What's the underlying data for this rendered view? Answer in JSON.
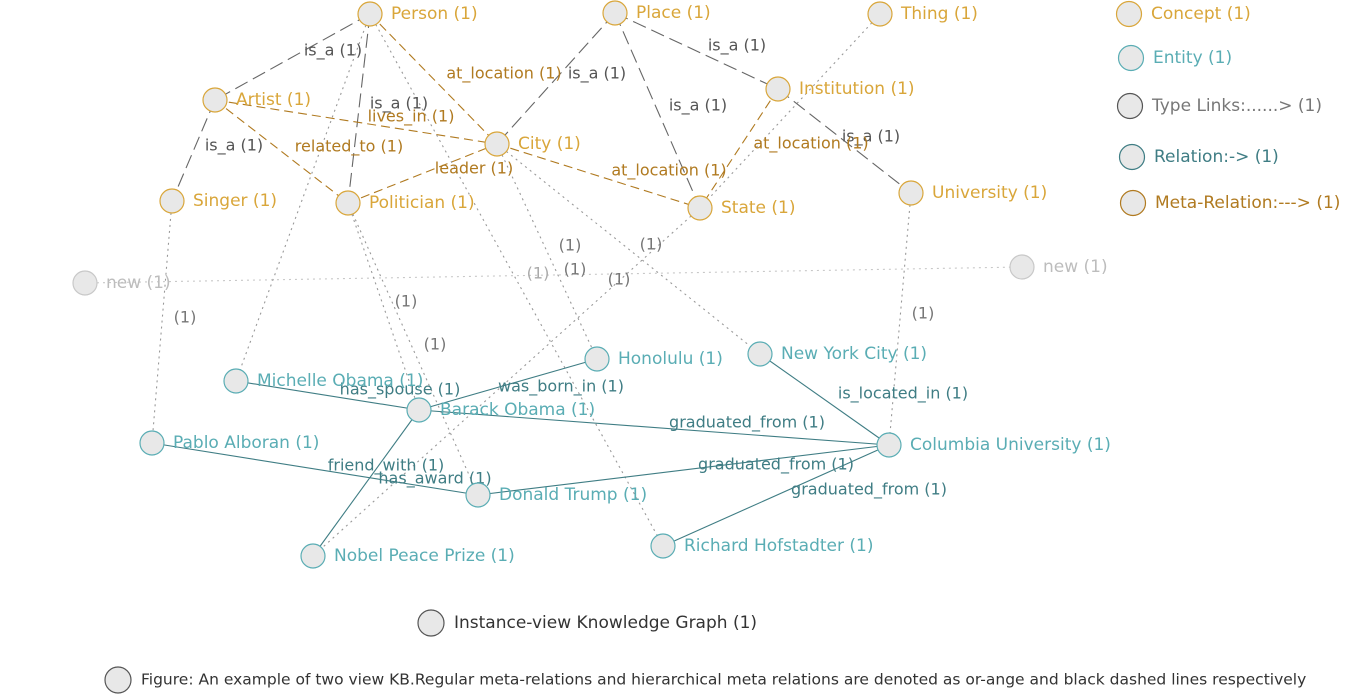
{
  "colors": {
    "concept": "#D9A63A",
    "entity": "#5AADB4",
    "relation": "#3F7D84",
    "meta_relation": "#B07A20",
    "type_link": "#999999",
    "hierarchy": "#666666",
    "new": "#c8c8c8",
    "neutral_circle": "#555555",
    "neutral_text": "#333333"
  },
  "nodes": [
    {
      "id": "person",
      "label": "Person (1)",
      "kind": "concept"
    },
    {
      "id": "place",
      "label": "Place (1)",
      "kind": "concept"
    },
    {
      "id": "thing",
      "label": "Thing (1)",
      "kind": "concept"
    },
    {
      "id": "artist",
      "label": "Artist (1)",
      "kind": "concept"
    },
    {
      "id": "institution",
      "label": "Institution (1)",
      "kind": "concept"
    },
    {
      "id": "city",
      "label": "City (1)",
      "kind": "concept"
    },
    {
      "id": "singer",
      "label": "Singer (1)",
      "kind": "concept"
    },
    {
      "id": "politician",
      "label": "Politician (1)",
      "kind": "concept"
    },
    {
      "id": "state",
      "label": "State (1)",
      "kind": "concept"
    },
    {
      "id": "university",
      "label": "University (1)",
      "kind": "concept"
    },
    {
      "id": "new_left",
      "label": "new (1)",
      "kind": "new"
    },
    {
      "id": "new_right",
      "label": "new (1)",
      "kind": "new"
    },
    {
      "id": "honolulu",
      "label": "Honolulu (1)",
      "kind": "entity"
    },
    {
      "id": "nyc",
      "label": "New York City (1)",
      "kind": "entity"
    },
    {
      "id": "michelle",
      "label": "Michelle Obama (1)",
      "kind": "entity"
    },
    {
      "id": "barack",
      "label": "Barack Obama (1)",
      "kind": "entity"
    },
    {
      "id": "pablo",
      "label": "Pablo Alboran (1)",
      "kind": "entity"
    },
    {
      "id": "columbia",
      "label": "Columbia University (1)",
      "kind": "entity"
    },
    {
      "id": "trump",
      "label": "Donald Trump (1)",
      "kind": "entity"
    },
    {
      "id": "nobel",
      "label": "Nobel Peace Prize (1)",
      "kind": "entity"
    },
    {
      "id": "hofstadter",
      "label": "Richard Hofstadter (1)",
      "kind": "entity"
    }
  ],
  "edges": [
    {
      "id": "e1",
      "source": "person",
      "target": "artist",
      "kind": "hierarchy",
      "label": "is_a (1)"
    },
    {
      "id": "e2",
      "source": "person",
      "target": "politician",
      "kind": "hierarchy",
      "label": "is_a (1)"
    },
    {
      "id": "e3",
      "source": "artist",
      "target": "singer",
      "kind": "hierarchy",
      "label": "is_a (1)"
    },
    {
      "id": "e4",
      "source": "place",
      "target": "city",
      "kind": "hierarchy",
      "label": "is_a (1)"
    },
    {
      "id": "e5",
      "source": "place",
      "target": "state",
      "kind": "hierarchy",
      "label": "is_a (1)"
    },
    {
      "id": "e6",
      "source": "place",
      "target": "institution",
      "kind": "hierarchy",
      "label": "is_a (1)"
    },
    {
      "id": "e7",
      "source": "institution",
      "target": "university",
      "kind": "hierarchy",
      "label": "is_a (1)"
    },
    {
      "id": "e8",
      "source": "person",
      "target": "city",
      "kind": "meta",
      "label": "at_location (1)"
    },
    {
      "id": "e9",
      "source": "artist",
      "target": "city",
      "kind": "meta",
      "label": "lives_in (1)"
    },
    {
      "id": "e10",
      "source": "artist",
      "target": "politician",
      "kind": "meta",
      "label": "related_to (1)"
    },
    {
      "id": "e11",
      "source": "politician",
      "target": "city",
      "kind": "meta",
      "label": "leader (1)"
    },
    {
      "id": "e12",
      "source": "city",
      "target": "state",
      "kind": "meta",
      "label": "at_location (1)"
    },
    {
      "id": "e13",
      "source": "institution",
      "target": "state",
      "kind": "meta",
      "label": "at_location (1)"
    },
    {
      "id": "e14",
      "source": "thing",
      "target": "state",
      "kind": "type",
      "label": ""
    },
    {
      "id": "e15",
      "source": "new_left",
      "target": "new_right",
      "kind": "new",
      "label": "(1)"
    },
    {
      "id": "e16",
      "source": "person",
      "target": "michelle",
      "kind": "type",
      "label": ""
    },
    {
      "id": "e17",
      "source": "person",
      "target": "hofstadter",
      "kind": "type",
      "label": "(1)"
    },
    {
      "id": "e18",
      "source": "singer",
      "target": "pablo",
      "kind": "type",
      "label": "(1)"
    },
    {
      "id": "e19",
      "source": "politician",
      "target": "barack",
      "kind": "type",
      "label": "(1)"
    },
    {
      "id": "e20",
      "source": "politician",
      "target": "trump",
      "kind": "type",
      "label": "(1)"
    },
    {
      "id": "e21",
      "source": "city",
      "target": "honolulu",
      "kind": "type",
      "label": "(1)"
    },
    {
      "id": "e22",
      "source": "city",
      "target": "nyc",
      "kind": "type",
      "label": "(1)"
    },
    {
      "id": "e23",
      "source": "state",
      "target": "nobel",
      "kind": "type",
      "label": "(1)"
    },
    {
      "id": "e24",
      "source": "university",
      "target": "columbia",
      "kind": "type",
      "label": "(1)"
    },
    {
      "id": "e25",
      "source": "michelle",
      "target": "barack",
      "kind": "relation",
      "label": "has_spouse (1)"
    },
    {
      "id": "e26",
      "source": "barack",
      "target": "honolulu",
      "kind": "relation",
      "label": "was_born_in (1)"
    },
    {
      "id": "e27",
      "source": "barack",
      "target": "columbia",
      "kind": "relation",
      "label": "graduated_from (1)"
    },
    {
      "id": "e28",
      "source": "nyc",
      "target": "columbia",
      "kind": "relation",
      "label": "is_located_in (1)"
    },
    {
      "id": "e29",
      "source": "pablo",
      "target": "trump",
      "kind": "relation",
      "label": "friend_with (1)"
    },
    {
      "id": "e30",
      "source": "barack",
      "target": "nobel",
      "kind": "relation",
      "label": "has_award (1)"
    },
    {
      "id": "e31",
      "source": "trump",
      "target": "columbia",
      "kind": "relation",
      "label": "graduated_from (1)"
    },
    {
      "id": "e32",
      "source": "hofstadter",
      "target": "columbia",
      "kind": "relation",
      "label": "graduated_from (1)"
    }
  ],
  "legend": {
    "items": [
      {
        "label": "Concept (1)",
        "kind": "concept"
      },
      {
        "label": "Entity (1)",
        "kind": "entity"
      },
      {
        "label": "Type Links:......> (1)",
        "kind": "type"
      },
      {
        "label": "Relation:-> (1)",
        "kind": "relation"
      },
      {
        "label": "Meta-Relation:---> (1)",
        "kind": "meta"
      }
    ]
  },
  "caption_items": [
    {
      "label": "Instance-view Knowledge Graph (1)"
    },
    {
      "label": "Figure: An example of two view KB.Regular meta-relations and hierarchical meta relations are denoted as or-ange and black dashed lines respectively"
    }
  ]
}
